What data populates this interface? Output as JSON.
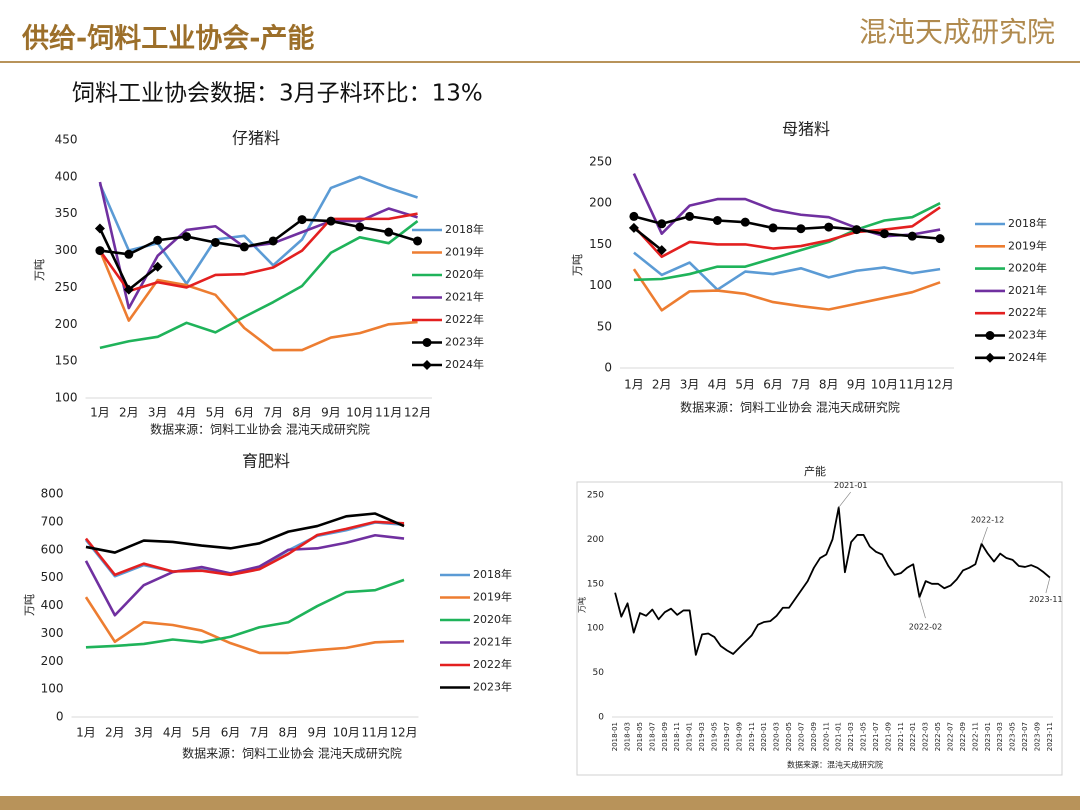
{
  "header": {
    "title": "供给-饲料工业协会-产能",
    "logo": "混沌天成研究院",
    "subtitle": "饲料工业协会数据：3月子料环比：13%"
  },
  "chart_data": [
    {
      "type": "line",
      "title": "仔猪料",
      "y_label": "万吨",
      "source": "数据来源：饲料工业协会 混沌天成研究院",
      "categories": [
        "1月",
        "2月",
        "3月",
        "4月",
        "5月",
        "6月",
        "7月",
        "8月",
        "9月",
        "10月",
        "11月",
        "12月"
      ],
      "ylim": [
        100,
        450
      ],
      "yticks": [
        100,
        150,
        200,
        250,
        300,
        350,
        400,
        450
      ],
      "grid": false,
      "legend": "right",
      "series": [
        {
          "name": "2018年",
          "color": "#5b9bd5",
          "values": [
            390,
            300,
            310,
            255,
            315,
            320,
            280,
            315,
            385,
            400,
            385,
            372
          ]
        },
        {
          "name": "2019年",
          "color": "#ed7d31",
          "values": [
            300,
            205,
            260,
            253,
            240,
            195,
            165,
            165,
            182,
            188,
            200,
            203
          ]
        },
        {
          "name": "2020年",
          "color": "#1fb35a",
          "values": [
            168,
            177,
            183,
            202,
            189,
            210,
            230,
            252,
            297,
            318,
            310,
            340
          ]
        },
        {
          "name": "2021年",
          "color": "#7030a0",
          "values": [
            393,
            222,
            293,
            328,
            333,
            305,
            310,
            325,
            340,
            340,
            357,
            345
          ]
        },
        {
          "name": "2022年",
          "color": "#e32020",
          "values": [
            300,
            245,
            257,
            250,
            267,
            268,
            277,
            300,
            343,
            343,
            343,
            350
          ]
        },
        {
          "name": "2023年",
          "color": "#000000",
          "marker": "circle",
          "values": [
            300,
            295,
            314,
            319,
            311,
            305,
            313,
            342,
            340,
            332,
            325,
            313
          ]
        },
        {
          "name": "2024年",
          "color": "#000000",
          "marker": "diamond",
          "values": [
            330,
            247,
            278,
            null,
            null,
            null,
            null,
            null,
            null,
            null,
            null,
            null
          ]
        }
      ]
    },
    {
      "type": "line",
      "title": "母猪料",
      "y_label": "万吨",
      "source": "数据来源：饲料工业协会 混沌天成研究院",
      "categories": [
        "1月",
        "2月",
        "3月",
        "4月",
        "5月",
        "6月",
        "7月",
        "8月",
        "9月",
        "10月",
        "11月",
        "12月"
      ],
      "ylim": [
        0,
        250
      ],
      "yticks": [
        0,
        50,
        100,
        150,
        200,
        250
      ],
      "grid": false,
      "legend": "right",
      "series": [
        {
          "name": "2018年",
          "color": "#5b9bd5",
          "values": [
            140,
            113,
            128,
            95,
            117,
            114,
            121,
            110,
            118,
            122,
            115,
            120
          ]
        },
        {
          "name": "2019年",
          "color": "#ed7d31",
          "values": [
            120,
            70,
            93,
            94,
            90,
            80,
            75,
            71,
            78,
            85,
            92,
            104
          ]
        },
        {
          "name": "2020年",
          "color": "#1fb35a",
          "values": [
            107,
            108,
            114,
            123,
            123,
            133,
            143,
            153,
            168,
            179,
            183,
            200
          ]
        },
        {
          "name": "2021年",
          "color": "#7030a0",
          "values": [
            236,
            163,
            197,
            205,
            205,
            192,
            186,
            183,
            170,
            160,
            162,
            168
          ]
        },
        {
          "name": "2022年",
          "color": "#e32020",
          "values": [
            172,
            135,
            153,
            150,
            150,
            145,
            148,
            155,
            165,
            168,
            172,
            195
          ]
        },
        {
          "name": "2023年",
          "color": "#000000",
          "marker": "circle",
          "values": [
            184,
            175,
            184,
            179,
            177,
            170,
            169,
            171,
            168,
            163,
            160,
            157
          ]
        },
        {
          "name": "2024年",
          "color": "#000000",
          "marker": "diamond",
          "values": [
            170,
            143,
            null,
            null,
            null,
            null,
            null,
            null,
            null,
            null,
            null,
            null
          ]
        }
      ]
    },
    {
      "type": "line",
      "title": "育肥料",
      "y_label": "万吨",
      "source": "数据来源：饲料工业协会 混沌天成研究院",
      "categories": [
        "1月",
        "2月",
        "3月",
        "4月",
        "5月",
        "6月",
        "7月",
        "8月",
        "9月",
        "10月",
        "11月",
        "12月"
      ],
      "ylim": [
        0,
        800
      ],
      "yticks": [
        0,
        100,
        200,
        300,
        400,
        500,
        600,
        700,
        800
      ],
      "grid": false,
      "legend": "right",
      "series": [
        {
          "name": "2018年",
          "color": "#5b9bd5",
          "values": [
            635,
            505,
            545,
            522,
            530,
            512,
            535,
            598,
            650,
            670,
            698,
            690
          ]
        },
        {
          "name": "2019年",
          "color": "#ed7d31",
          "values": [
            430,
            270,
            340,
            330,
            310,
            265,
            230,
            230,
            240,
            248,
            268,
            272
          ]
        },
        {
          "name": "2020年",
          "color": "#1fb35a",
          "values": [
            250,
            255,
            262,
            278,
            268,
            288,
            322,
            340,
            398,
            448,
            455,
            492
          ]
        },
        {
          "name": "2021年",
          "color": "#7030a0",
          "values": [
            560,
            365,
            473,
            520,
            538,
            515,
            540,
            600,
            605,
            625,
            652,
            640
          ]
        },
        {
          "name": "2022年",
          "color": "#e32020",
          "values": [
            640,
            510,
            550,
            522,
            525,
            510,
            530,
            585,
            653,
            675,
            700,
            695
          ]
        },
        {
          "name": "2023年",
          "color": "#000000",
          "values": [
            610,
            590,
            633,
            628,
            615,
            605,
            623,
            665,
            685,
            720,
            730,
            685
          ]
        }
      ]
    },
    {
      "type": "line",
      "title": "产能",
      "y_label": "万吨",
      "source": "数据来源：混沌天成研究院",
      "framed": true,
      "categories": [
        "2018-01",
        null,
        "2018-03",
        null,
        "2018-05",
        null,
        "2018-07",
        null,
        "2018-09",
        null,
        "2018-11",
        null,
        "2019-01",
        null,
        "2019-03",
        null,
        "2019-05",
        null,
        "2019-07",
        null,
        "2019-09",
        null,
        "2019-11",
        null,
        "2020-01",
        null,
        "2020-03",
        null,
        "2020-05",
        null,
        "2020-07",
        null,
        "2020-09",
        null,
        "2020-11",
        null,
        "2021-01",
        null,
        "2021-03",
        null,
        "2021-05",
        null,
        "2021-07",
        null,
        "2021-09",
        null,
        "2021-11",
        null,
        "2022-01",
        null,
        "2022-03",
        null,
        "2022-05",
        null,
        "2022-07",
        null,
        "2022-09",
        null,
        "2022-11",
        null,
        "2023-01",
        null,
        "2023-03",
        null,
        "2023-05",
        null,
        "2023-07",
        null,
        "2023-09",
        null,
        "2023-11"
      ],
      "ylim": [
        0,
        250
      ],
      "yticks": [
        0,
        50,
        100,
        150,
        200,
        250
      ],
      "grid": false,
      "color": "#000000",
      "values": [
        140,
        113,
        128,
        95,
        117,
        114,
        121,
        110,
        118,
        122,
        115,
        120,
        120,
        70,
        93,
        94,
        90,
        80,
        75,
        71,
        78,
        85,
        92,
        104,
        107,
        108,
        114,
        123,
        123,
        133,
        143,
        153,
        168,
        179,
        183,
        200,
        236,
        163,
        197,
        205,
        205,
        192,
        186,
        183,
        170,
        160,
        162,
        168,
        172,
        135,
        153,
        150,
        150,
        145,
        148,
        155,
        165,
        168,
        172,
        195,
        184,
        175,
        184,
        179,
        177,
        170,
        169,
        171,
        168,
        163,
        157
      ],
      "annotations": [
        "2021-01",
        "2022-02",
        "2022-12",
        "2023-11"
      ]
    }
  ]
}
